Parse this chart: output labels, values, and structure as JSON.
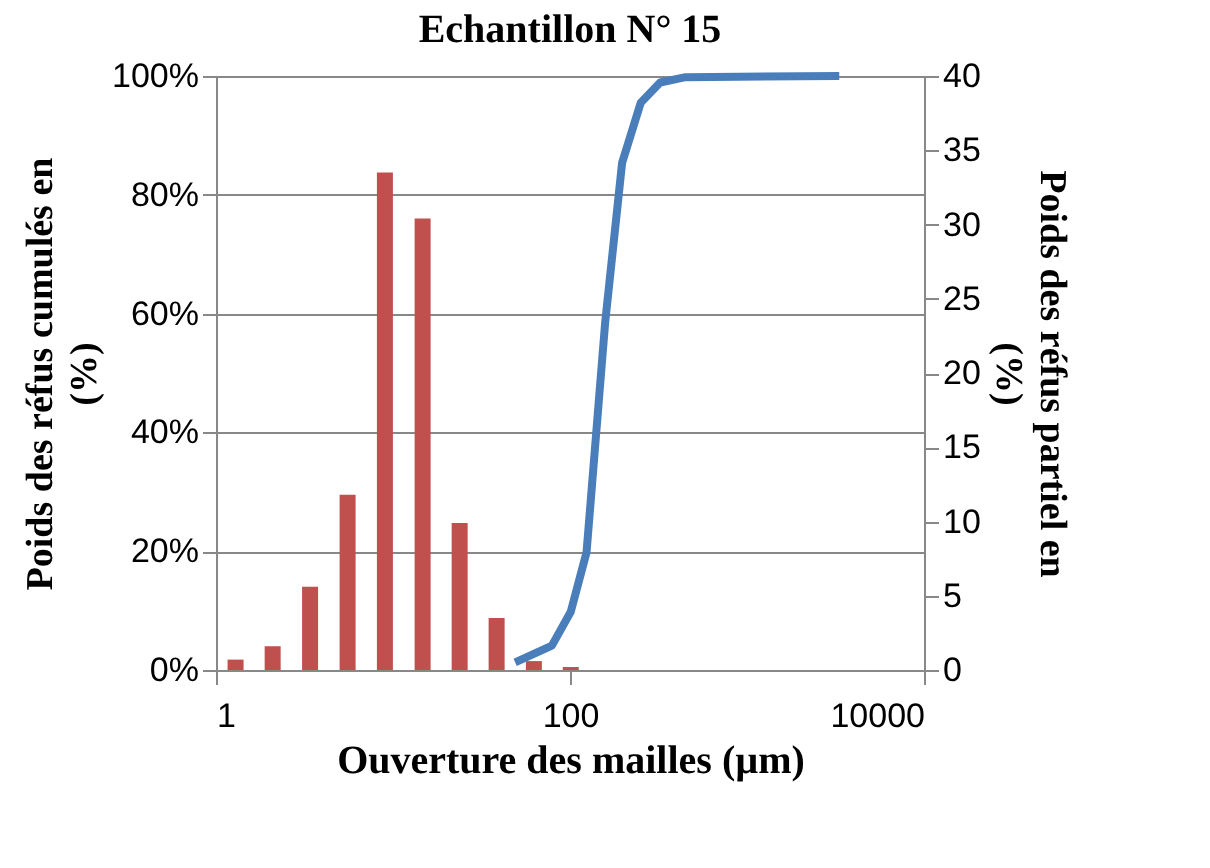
{
  "chart_data": {
    "type": "bar",
    "title": "Echantillon N° 15",
    "xlabel": "Ouverture des mailles (µm)",
    "ylabel": "Poids  des réfus cumulés en (%)",
    "y2label": "Poids des réfus partiel en (%)",
    "log": "x",
    "xlim": [
      1,
      10000
    ],
    "xticks": [
      1,
      100,
      10000
    ],
    "ylim": [
      0,
      100
    ],
    "yticks": [
      {
        "value": 0,
        "label": "0%"
      },
      {
        "value": 20,
        "label": "20%"
      },
      {
        "value": 40,
        "label": "40%"
      },
      {
        "value": 60,
        "label": "60%"
      },
      {
        "value": 80,
        "label": "80%"
      },
      {
        "value": 100,
        "label": "100%"
      }
    ],
    "y2lim": [
      0,
      40
    ],
    "y2ticks": [
      0,
      5,
      10,
      15,
      20,
      25,
      30,
      35,
      40
    ],
    "grid": "y",
    "series": [
      {
        "axis": "y2",
        "color": "#c0504d",
        "x": [
          1.29,
          2.09,
          3.4,
          5.54,
          9.0,
          14.7,
          23.8,
          38.5,
          62.5,
          101
        ],
        "values": [
          0.7,
          1.6,
          5.6,
          11.8,
          33.5,
          30.4,
          9.9,
          3.5,
          0.6,
          0.2
        ]
      },
      {
        "type": "line",
        "axis": "y",
        "color": "#4a7ebb",
        "marker": "none",
        "line_style": "solid",
        "x": [
          49,
          79,
          101,
          124,
          158,
          197,
          251,
          323,
          450,
          3320
        ],
        "values": [
          1.3,
          4.1,
          9.8,
          19.8,
          58.5,
          85.4,
          95.5,
          98.9,
          99.8,
          100
        ]
      }
    ]
  }
}
